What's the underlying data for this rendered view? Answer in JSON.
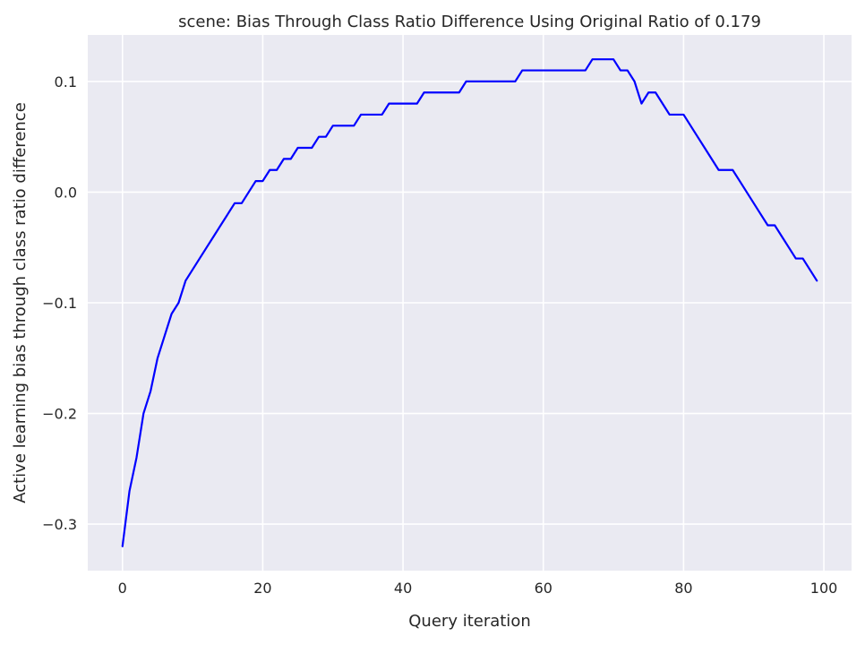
{
  "chart_data": {
    "type": "line",
    "title": "scene: Bias Through Class Ratio Difference Using Original Ratio of 0.179",
    "xlabel": "Query iteration",
    "ylabel": "Active learning bias through class ratio difference",
    "xlim": [
      -4.95,
      103.95
    ],
    "ylim": [
      -0.342,
      0.142
    ],
    "xticks": [
      0,
      20,
      40,
      60,
      80,
      100
    ],
    "xtick_labels": [
      "0",
      "20",
      "40",
      "60",
      "80",
      "100"
    ],
    "yticks": [
      -0.3,
      -0.2,
      -0.1,
      0.0,
      0.1
    ],
    "ytick_labels": [
      "−0.3",
      "−0.2",
      "−0.1",
      "0.0",
      "0.1"
    ],
    "grid": true,
    "background_color": "#EAEAF2",
    "grid_color": "#FFFFFF",
    "series": [
      {
        "color": "#0000FF",
        "x": [
          0,
          1,
          2,
          3,
          4,
          5,
          6,
          7,
          8,
          9,
          10,
          11,
          12,
          13,
          14,
          15,
          16,
          17,
          18,
          19,
          20,
          21,
          22,
          23,
          24,
          25,
          26,
          27,
          28,
          29,
          30,
          31,
          32,
          33,
          34,
          35,
          36,
          37,
          38,
          39,
          40,
          41,
          42,
          43,
          44,
          45,
          46,
          47,
          48,
          49,
          50,
          51,
          52,
          53,
          54,
          55,
          56,
          57,
          58,
          59,
          60,
          61,
          62,
          63,
          64,
          65,
          66,
          67,
          68,
          69,
          70,
          71,
          72,
          73,
          74,
          75,
          76,
          77,
          78,
          79,
          80,
          81,
          82,
          83,
          84,
          85,
          86,
          87,
          88,
          89,
          90,
          91,
          92,
          93,
          94,
          95,
          96,
          97,
          98,
          99
        ],
        "y": [
          -0.32,
          -0.27,
          -0.24,
          -0.2,
          -0.18,
          -0.15,
          -0.13,
          -0.11,
          -0.1,
          -0.08,
          -0.07,
          -0.06,
          -0.05,
          -0.04,
          -0.03,
          -0.02,
          -0.01,
          -0.01,
          0.0,
          0.01,
          0.01,
          0.02,
          0.02,
          0.03,
          0.03,
          0.04,
          0.04,
          0.04,
          0.05,
          0.05,
          0.06,
          0.06,
          0.06,
          0.06,
          0.07,
          0.07,
          0.07,
          0.07,
          0.08,
          0.08,
          0.08,
          0.08,
          0.08,
          0.09,
          0.09,
          0.09,
          0.09,
          0.09,
          0.09,
          0.1,
          0.1,
          0.1,
          0.1,
          0.1,
          0.1,
          0.1,
          0.1,
          0.11,
          0.11,
          0.11,
          0.11,
          0.11,
          0.11,
          0.11,
          0.11,
          0.11,
          0.11,
          0.12,
          0.12,
          0.12,
          0.12,
          0.11,
          0.11,
          0.1,
          0.08,
          0.09,
          0.09,
          0.08,
          0.07,
          0.07,
          0.07,
          0.06,
          0.05,
          0.04,
          0.03,
          0.02,
          0.02,
          0.02,
          0.01,
          0.0,
          -0.01,
          -0.02,
          -0.03,
          -0.03,
          -0.04,
          -0.05,
          -0.06,
          -0.06,
          -0.07,
          -0.08
        ]
      }
    ]
  }
}
